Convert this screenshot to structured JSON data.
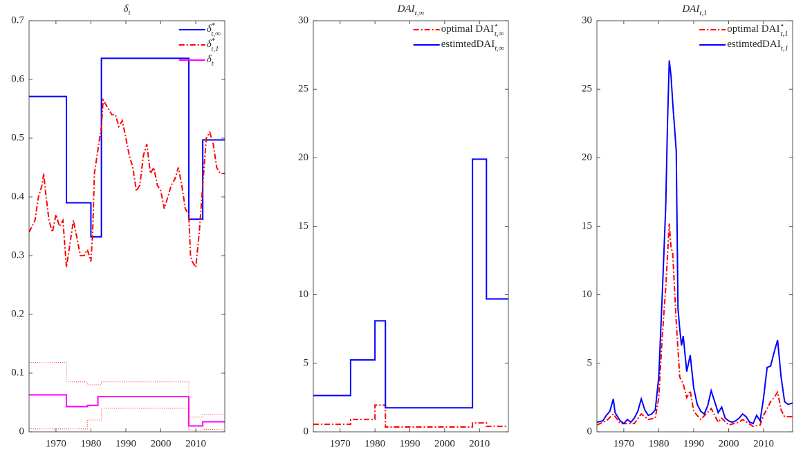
{
  "chart_data": [
    {
      "type": "line",
      "title": "δ",
      "title_sub": "t",
      "xlim": [
        1962.3,
        2018.3
      ],
      "xticks": [
        1970,
        1980,
        1990,
        2000,
        2010
      ],
      "ylim": [
        0,
        0.7
      ],
      "yticks": [
        0,
        0.1,
        0.2,
        0.3,
        0.4,
        0.5,
        0.6,
        0.7
      ],
      "legend": "upper right",
      "series": [
        {
          "name": "δ",
          "name_sup": "*",
          "name_sub": "t,∞",
          "color": "#0000ff",
          "style": "solid",
          "x": [
            1962.3,
            1973,
            1973,
            1980,
            1980,
            1983,
            1983,
            2008,
            2008,
            2012,
            2012,
            2018.3
          ],
          "values": [
            0.571,
            0.571,
            0.39,
            0.39,
            0.332,
            0.332,
            0.636,
            0.636,
            0.362,
            0.362,
            0.497,
            0.497
          ]
        },
        {
          "name": "δ",
          "name_sup": "*",
          "name_sub": "t,1",
          "color": "#ff0000",
          "style": "dashdot",
          "x": [
            1962.3,
            1964,
            1965,
            1966,
            1966.5,
            1967,
            1968,
            1969,
            1970,
            1971,
            1972,
            1973,
            1974,
            1975,
            1976,
            1977,
            1978,
            1979,
            1980,
            1980.5,
            1981,
            1982,
            1983,
            1983.5,
            1984,
            1985,
            1986,
            1987,
            1988,
            1989,
            1990,
            1991,
            1992,
            1993,
            1994,
            1995,
            1996,
            1997,
            1998,
            1999,
            2000,
            2001,
            2002,
            2003,
            2004,
            2005,
            2006,
            2007,
            2008,
            2008.5,
            2009,
            2010,
            2011,
            2012,
            2013,
            2014,
            2015,
            2016,
            2017,
            2018.3
          ],
          "values": [
            0.34,
            0.36,
            0.4,
            0.42,
            0.44,
            0.41,
            0.36,
            0.34,
            0.37,
            0.35,
            0.36,
            0.28,
            0.32,
            0.36,
            0.33,
            0.3,
            0.3,
            0.31,
            0.29,
            0.34,
            0.44,
            0.48,
            0.52,
            0.565,
            0.56,
            0.55,
            0.54,
            0.54,
            0.52,
            0.53,
            0.5,
            0.47,
            0.45,
            0.41,
            0.42,
            0.47,
            0.49,
            0.44,
            0.45,
            0.42,
            0.41,
            0.38,
            0.4,
            0.42,
            0.43,
            0.45,
            0.42,
            0.38,
            0.37,
            0.3,
            0.29,
            0.28,
            0.34,
            0.42,
            0.5,
            0.51,
            0.49,
            0.45,
            0.44,
            0.44
          ]
        },
        {
          "name": "δ",
          "name_sub": "t",
          "color": "#ff00ff",
          "style": "solid",
          "x": [
            1962.3,
            1973,
            1973,
            1979,
            1979,
            1982,
            1982,
            2008,
            2008,
            2012,
            2012,
            2018.3
          ],
          "values": [
            0.063,
            0.063,
            0.043,
            0.043,
            0.045,
            0.045,
            0.06,
            0.06,
            0.01,
            0.01,
            0.017,
            0.017
          ]
        },
        {
          "color": "#ff3030",
          "style": "dotted",
          "x": [
            1962.3,
            1973,
            1973,
            1979,
            1979,
            1983,
            1983,
            2008,
            2008,
            2012,
            2012,
            2018.3
          ],
          "values": [
            0.118,
            0.118,
            0.085,
            0.085,
            0.08,
            0.08,
            0.085,
            0.085,
            0.025,
            0.025,
            0.03,
            0.03
          ]
        },
        {
          "color": "#ff3030",
          "style": "dotted",
          "x": [
            1962.3,
            1973,
            1973,
            1979,
            1979,
            1983,
            1983,
            2008,
            2008,
            2012,
            2012,
            2018.3
          ],
          "values": [
            0.005,
            0.005,
            0.005,
            0.005,
            0.02,
            0.02,
            0.04,
            0.04,
            0.003,
            0.003,
            0.004,
            0.004
          ]
        }
      ]
    },
    {
      "type": "line",
      "title": "DAI",
      "title_sub": "t,∞",
      "xlim": [
        1962.3,
        2018.3
      ],
      "xticks": [
        1970,
        1980,
        1990,
        2000,
        2010
      ],
      "ylim": [
        0,
        30
      ],
      "yticks": [
        0,
        5,
        10,
        15,
        20,
        25,
        30
      ],
      "legend": "upper right",
      "series": [
        {
          "name": "optimal DAI",
          "name_sup": "⋆",
          "name_sub": "t,∞",
          "color": "#ff0000",
          "style": "dashdot",
          "x": [
            1962.3,
            1973,
            1973,
            1980,
            1980,
            1983,
            1983,
            2008,
            2008,
            2012,
            2012,
            2018.3
          ],
          "values": [
            0.55,
            0.55,
            0.9,
            0.9,
            1.95,
            1.95,
            0.35,
            0.35,
            0.65,
            0.65,
            0.4,
            0.4
          ]
        },
        {
          "name": "estimtedDAI",
          "name_sub": "t,∞",
          "color": "#0000ff",
          "style": "solid",
          "x": [
            1962.3,
            1973,
            1973,
            1980,
            1980,
            1983,
            1983,
            2008,
            2008,
            2012,
            2012,
            2018.3
          ],
          "values": [
            2.65,
            2.65,
            5.25,
            5.25,
            8.1,
            8.1,
            1.75,
            1.75,
            19.9,
            19.9,
            9.7,
            9.7
          ]
        }
      ]
    },
    {
      "type": "line",
      "title": "DAI",
      "title_sub": "t,1",
      "xlim": [
        1962.3,
        2018.3
      ],
      "xticks": [
        1970,
        1980,
        1990,
        2000,
        2010
      ],
      "ylim": [
        0,
        30
      ],
      "yticks": [
        0,
        5,
        10,
        15,
        20,
        25,
        30
      ],
      "legend": "upper right",
      "series": [
        {
          "name": "optimal DAI",
          "name_sup": "⋆",
          "name_sub": "t,1",
          "color": "#ff0000",
          "style": "dashdot",
          "x": [
            1962.3,
            1965,
            1967,
            1969,
            1973,
            1975,
            1977,
            1979,
            1980,
            1981,
            1982,
            1983,
            1983.5,
            1984,
            1985,
            1986,
            1987,
            1988,
            1989,
            1990,
            1992,
            1995,
            1997,
            1998,
            2000,
            2003,
            2004,
            2007,
            2009,
            2010,
            2012,
            2013,
            2014,
            2015,
            2016,
            2018.3
          ],
          "values": [
            0.5,
            0.8,
            1.3,
            0.6,
            0.6,
            1.3,
            0.9,
            1.0,
            2.5,
            7,
            10.5,
            15.2,
            13.5,
            13,
            8,
            4,
            3.5,
            2.5,
            3.0,
            1.5,
            0.9,
            1.7,
            0.7,
            1.0,
            0.5,
            0.7,
            0.9,
            0.4,
            0.5,
            1.2,
            2.2,
            2.5,
            2.9,
            1.6,
            1.1,
            1.1
          ]
        },
        {
          "name": "estimtedDAI",
          "name_sub": "t,1",
          "color": "#0000ff",
          "style": "solid",
          "x": [
            1962.3,
            1964,
            1965,
            1966,
            1967,
            1967.5,
            1969,
            1970,
            1971,
            1972,
            1973,
            1974,
            1975,
            1976,
            1977,
            1978,
            1979,
            1980,
            1981,
            1982,
            1982.5,
            1983,
            1983.5,
            1984,
            1985,
            1985.5,
            1986,
            1986.5,
            1987,
            1988,
            1989,
            1990,
            1991,
            1992,
            1993,
            1994,
            1995,
            1996,
            1997,
            1998,
            1999,
            2000,
            2001,
            2002,
            2003,
            2004,
            2005,
            2006,
            2007,
            2008,
            2009,
            2010,
            2011,
            2012,
            2013,
            2014,
            2015,
            2016,
            2017,
            2018.3
          ],
          "values": [
            0.7,
            0.8,
            1.2,
            1.5,
            2.4,
            1.4,
            0.8,
            0.6,
            0.9,
            0.7,
            1.0,
            1.5,
            2.4,
            1.6,
            1.2,
            1.3,
            1.6,
            4,
            10,
            16.5,
            22.5,
            27.1,
            26,
            24,
            20.5,
            9,
            7.5,
            6.3,
            7,
            4.4,
            5.6,
            3.2,
            2.0,
            1.5,
            1.3,
            1.9,
            3.0,
            2.2,
            1.4,
            1.8,
            1.0,
            0.8,
            0.7,
            0.8,
            1.0,
            1.3,
            1.1,
            0.7,
            0.6,
            1.2,
            0.8,
            2.5,
            4.7,
            4.8,
            5.8,
            6.7,
            4.0,
            2.2,
            2.0,
            2.1
          ]
        }
      ]
    }
  ]
}
